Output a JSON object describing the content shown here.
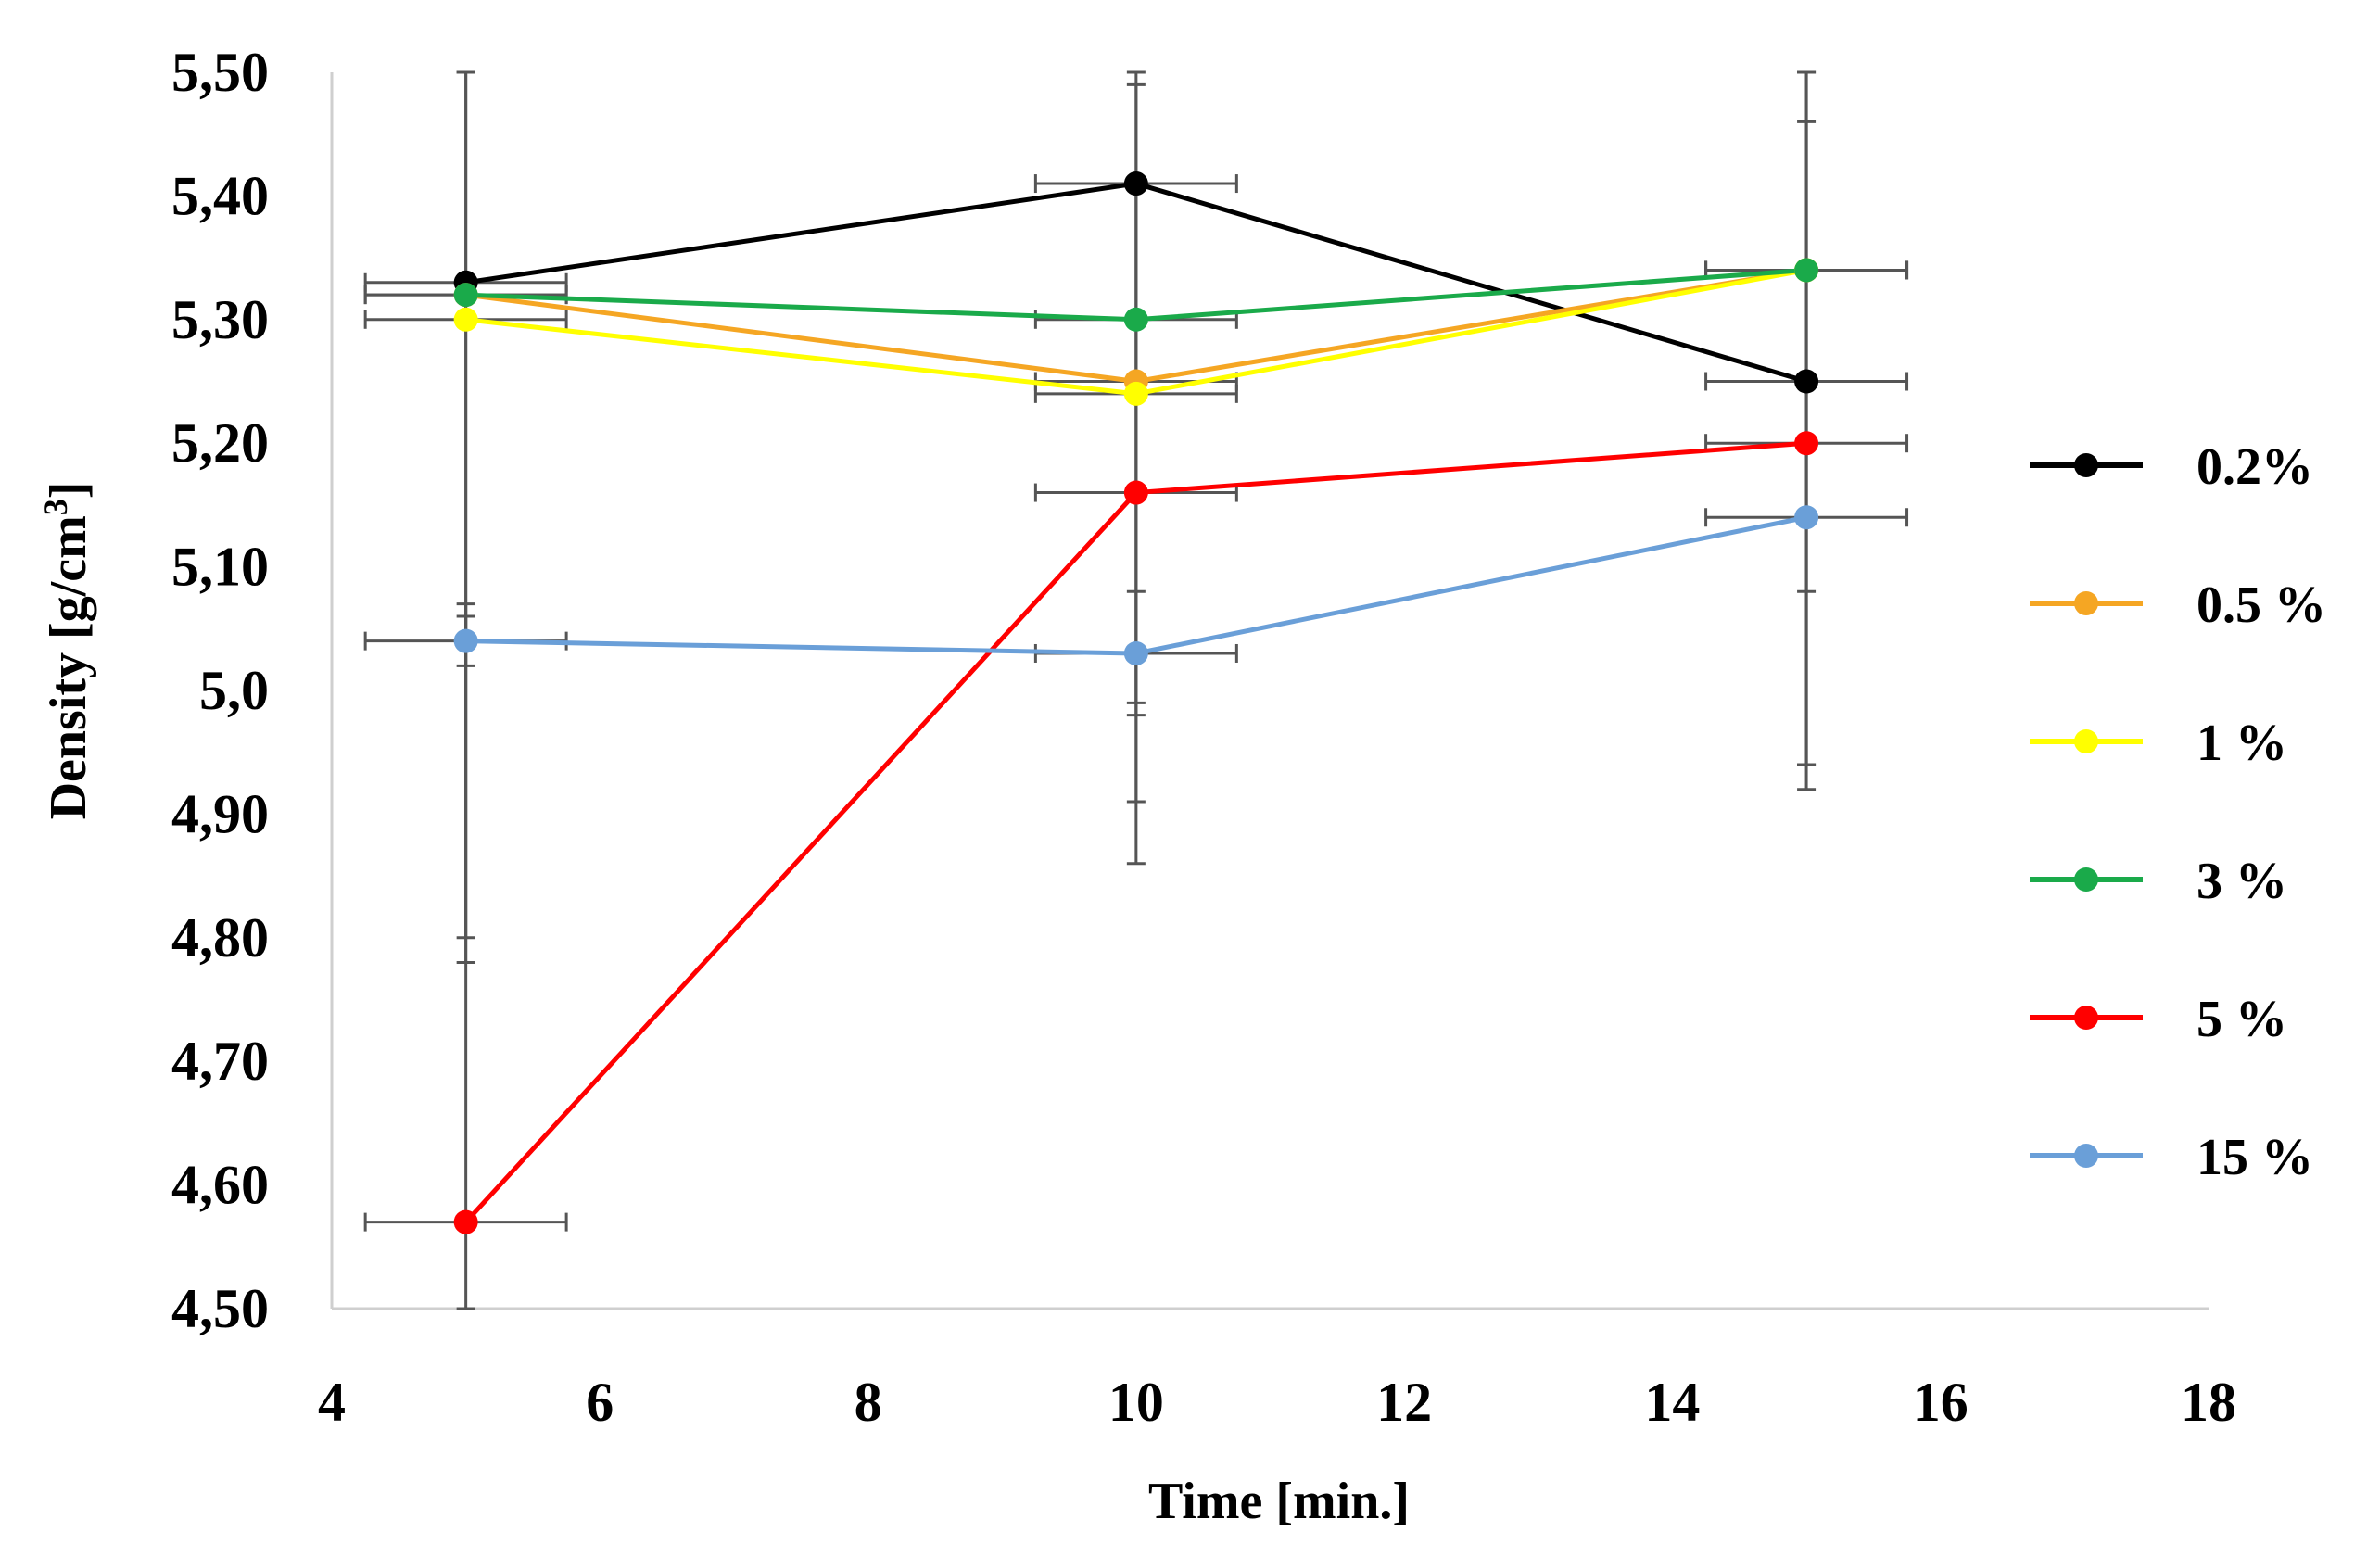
{
  "chart_data": {
    "type": "line",
    "title": "",
    "xlabel": "Time [min.]",
    "ylabel": {
      "text": "Density [g/cm",
      "sup": "3",
      "suffix": "]"
    },
    "xlim": [
      4,
      18
    ],
    "ylim": [
      4.5,
      5.5
    ],
    "x_ticks": [
      {
        "value": 4,
        "label": "4"
      },
      {
        "value": 6,
        "label": "6"
      },
      {
        "value": 8,
        "label": "8"
      },
      {
        "value": 10,
        "label": "10"
      },
      {
        "value": 12,
        "label": "12"
      },
      {
        "value": 14,
        "label": "14"
      },
      {
        "value": 16,
        "label": "16"
      },
      {
        "value": 18,
        "label": "18"
      }
    ],
    "y_ticks": [
      {
        "value": 5.5,
        "label": "5,50"
      },
      {
        "value": 5.4,
        "label": "5,40"
      },
      {
        "value": 5.3,
        "label": "5,30"
      },
      {
        "value": 5.2,
        "label": "5,20"
      },
      {
        "value": 5.1,
        "label": "5,10"
      },
      {
        "value": 5.0,
        "label": "5,0"
      },
      {
        "value": 4.9,
        "label": "4,90"
      },
      {
        "value": 4.8,
        "label": "4,80"
      },
      {
        "value": 4.7,
        "label": "4,70"
      },
      {
        "value": 4.6,
        "label": "4,60"
      },
      {
        "value": 4.5,
        "label": "4,50"
      }
    ],
    "x": [
      5,
      10,
      15
    ],
    "x_error": 0.75,
    "legend_position": "right",
    "series": [
      {
        "name": "0.2%",
        "color": "#000000",
        "values": [
          5.33,
          5.41,
          5.25
        ],
        "y_error": [
          0.55,
          0.55,
          0.33
        ]
      },
      {
        "name": "0.5 %",
        "color": "#f5a623",
        "values": [
          5.32,
          5.25,
          5.34
        ],
        "y_error": [
          0.0,
          0.0,
          0.0
        ]
      },
      {
        "name": "1 %",
        "color": "#ffff00",
        "values": [
          5.3,
          5.24,
          5.34
        ],
        "y_error": [
          0.5,
          0.25,
          0.4
        ]
      },
      {
        "name": "3 %",
        "color": "#1aaa4a",
        "values": [
          5.32,
          5.3,
          5.34
        ],
        "y_error": [
          0.0,
          0.0,
          0.0
        ]
      },
      {
        "name": "5 %",
        "color": "#ff0000",
        "values": [
          4.57,
          5.16,
          5.2
        ],
        "y_error": [
          0.5,
          0.25,
          0.26
        ]
      },
      {
        "name": "15 %",
        "color": "#6a9fd8",
        "values": [
          5.04,
          5.03,
          5.14
        ],
        "y_error": [
          0.02,
          0.05,
          0.06
        ]
      }
    ],
    "gridlines": false
  }
}
